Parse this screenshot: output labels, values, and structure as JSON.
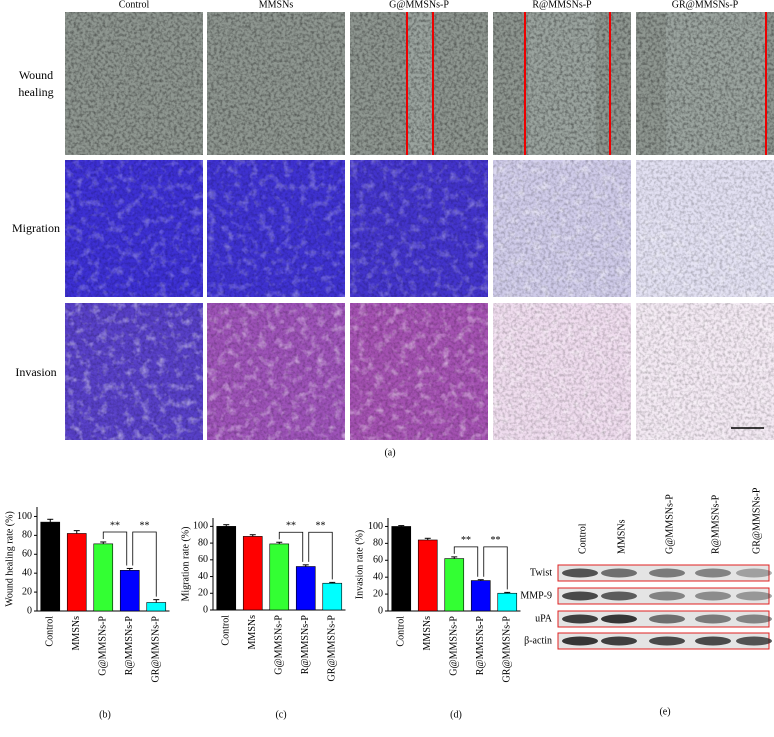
{
  "panel_a": {
    "columns": [
      "Control",
      "MMSNs",
      "G@MMSNs-P",
      "R@MMSNs-P",
      "GR@MMSNs-P"
    ],
    "rows": [
      "Wound healing",
      "Migration",
      "Invasion"
    ],
    "label": "(a)"
  },
  "chart_data": [
    {
      "type": "bar",
      "panel": "(b)",
      "ylabel": "Wound healing rate (%)",
      "categories": [
        "Control",
        "MMSNs",
        "G@MMSNs-P",
        "R@MMSNs-P",
        "GR@MMSNs-P"
      ],
      "values": [
        94,
        82,
        71,
        43,
        9
      ],
      "errors": [
        3,
        3,
        2,
        2,
        3
      ],
      "colors": [
        "#000000",
        "#ff0000",
        "#33ff33",
        "#0000ff",
        "#00ffff"
      ],
      "ylim": [
        0,
        110
      ],
      "yticks": [
        0,
        20,
        40,
        60,
        80,
        100
      ],
      "significance": [
        {
          "between": [
            "G@MMSNs-P",
            "R@MMSNs-P"
          ],
          "label": "**"
        },
        {
          "between": [
            "R@MMSNs-P",
            "GR@MMSNs-P"
          ],
          "label": "**"
        }
      ]
    },
    {
      "type": "bar",
      "panel": "(c)",
      "ylabel": "Migration rate (%)",
      "categories": [
        "Control",
        "MMSNs",
        "G@MMSNs-P",
        "R@MMSNs-P",
        "GR@MMSNs-P"
      ],
      "values": [
        100,
        88,
        79,
        52,
        32
      ],
      "errors": [
        2,
        2,
        2,
        2,
        1
      ],
      "colors": [
        "#000000",
        "#ff0000",
        "#33ff33",
        "#0000ff",
        "#00ffff"
      ],
      "ylim": [
        0,
        110
      ],
      "yticks": [
        0,
        20,
        40,
        60,
        80,
        100
      ],
      "significance": [
        {
          "between": [
            "G@MMSNs-P",
            "R@MMSNs-P"
          ],
          "label": "**"
        },
        {
          "between": [
            "R@MMSNs-P",
            "GR@MMSNs-P"
          ],
          "label": "**"
        }
      ]
    },
    {
      "type": "bar",
      "panel": "(d)",
      "ylabel": "Invasion rate (%)",
      "categories": [
        "Control",
        "MMSNs",
        "G@MMSNs-P",
        "R@MMSNs-P",
        "GR@MMSNs-P"
      ],
      "values": [
        100,
        84,
        62,
        36,
        21
      ],
      "errors": [
        1,
        2,
        2,
        1,
        1
      ],
      "colors": [
        "#000000",
        "#ff0000",
        "#33ff33",
        "#0000ff",
        "#00ffff"
      ],
      "ylim": [
        0,
        110
      ],
      "yticks": [
        0,
        20,
        40,
        60,
        80,
        100
      ],
      "significance": [
        {
          "between": [
            "G@MMSNs-P",
            "R@MMSNs-P"
          ],
          "label": "**"
        },
        {
          "between": [
            "R@MMSNs-P",
            "GR@MMSNs-P"
          ],
          "label": "**"
        }
      ]
    }
  ],
  "western_blot": {
    "lanes": [
      "Control",
      "MMSNs",
      "G@MMSNs-P",
      "R@MMSNs-P",
      "GR@MMSNs-P"
    ],
    "bands": [
      "Twist",
      "MMP-9",
      "uPA",
      "β-actin"
    ],
    "label": "(e)"
  }
}
